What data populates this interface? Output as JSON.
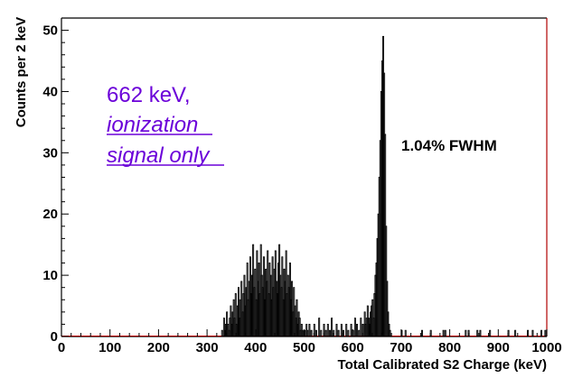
{
  "chart_data": {
    "type": "histogram",
    "title": "",
    "xlabel": "Total Calibrated S2 Charge (keV)",
    "ylabel": "Counts per 2 keV",
    "xlim": [
      0,
      1000
    ],
    "ylim": [
      0,
      52
    ],
    "x_ticks": [
      0,
      100,
      200,
      300,
      400,
      500,
      600,
      700,
      800,
      900,
      1000
    ],
    "y_ticks": [
      0,
      10,
      20,
      30,
      40,
      50
    ],
    "x_tick_labels": [
      "0",
      "100",
      "200",
      "300",
      "400",
      "500",
      "600",
      "700",
      "800",
      "900",
      "1000"
    ],
    "y_tick_labels": [
      "0",
      "10",
      "20",
      "30",
      "40",
      "50"
    ],
    "bin_width": 2,
    "grid": false,
    "legend": "none",
    "annotations": {
      "energy_label": "662 keV,",
      "line2": "ionization",
      "line3": "signal only",
      "resolution": "1.04% FWHM"
    },
    "colors": {
      "histogram": "#000000",
      "frame_right": "#b00000",
      "zero_line": "#b00000",
      "annotation": "#6b00d9"
    },
    "series": [
      {
        "bins": [
          [
            330,
            1
          ],
          [
            334,
            3
          ],
          [
            336,
            1
          ],
          [
            338,
            2
          ],
          [
            340,
            4
          ],
          [
            342,
            2
          ],
          [
            344,
            1
          ],
          [
            346,
            3
          ],
          [
            348,
            5
          ],
          [
            350,
            2
          ],
          [
            352,
            4
          ],
          [
            354,
            6
          ],
          [
            356,
            3
          ],
          [
            358,
            7
          ],
          [
            360,
            2
          ],
          [
            362,
            5
          ],
          [
            364,
            8
          ],
          [
            366,
            3
          ],
          [
            368,
            6
          ],
          [
            370,
            9
          ],
          [
            372,
            4
          ],
          [
            374,
            7
          ],
          [
            376,
            10
          ],
          [
            378,
            5
          ],
          [
            380,
            8
          ],
          [
            382,
            12
          ],
          [
            384,
            6
          ],
          [
            386,
            9
          ],
          [
            388,
            13
          ],
          [
            390,
            7
          ],
          [
            392,
            10
          ],
          [
            394,
            15
          ],
          [
            396,
            8
          ],
          [
            398,
            11
          ],
          [
            400,
            6
          ],
          [
            402,
            14
          ],
          [
            404,
            9
          ],
          [
            406,
            12
          ],
          [
            408,
            7
          ],
          [
            410,
            15
          ],
          [
            412,
            10
          ],
          [
            414,
            8
          ],
          [
            416,
            13
          ],
          [
            418,
            6
          ],
          [
            420,
            11
          ],
          [
            422,
            9
          ],
          [
            424,
            14
          ],
          [
            426,
            7
          ],
          [
            428,
            12
          ],
          [
            430,
            10
          ],
          [
            432,
            6
          ],
          [
            434,
            13
          ],
          [
            436,
            8
          ],
          [
            438,
            11
          ],
          [
            440,
            14
          ],
          [
            442,
            9
          ],
          [
            444,
            7
          ],
          [
            446,
            12
          ],
          [
            448,
            15
          ],
          [
            450,
            10
          ],
          [
            452,
            8
          ],
          [
            454,
            13
          ],
          [
            456,
            6
          ],
          [
            458,
            11
          ],
          [
            460,
            9
          ],
          [
            462,
            14
          ],
          [
            464,
            7
          ],
          [
            466,
            10
          ],
          [
            468,
            8
          ],
          [
            470,
            12
          ],
          [
            472,
            6
          ],
          [
            474,
            9
          ],
          [
            476,
            4
          ],
          [
            478,
            8
          ],
          [
            480,
            5
          ],
          [
            482,
            3
          ],
          [
            484,
            6
          ],
          [
            486,
            2
          ],
          [
            488,
            4
          ],
          [
            490,
            3
          ],
          [
            492,
            1
          ],
          [
            494,
            2
          ],
          [
            496,
            1
          ],
          [
            500,
            1
          ],
          [
            504,
            2
          ],
          [
            506,
            1
          ],
          [
            510,
            2
          ],
          [
            514,
            1
          ],
          [
            520,
            2
          ],
          [
            524,
            1
          ],
          [
            530,
            3
          ],
          [
            534,
            1
          ],
          [
            540,
            2
          ],
          [
            544,
            1
          ],
          [
            548,
            2
          ],
          [
            552,
            1
          ],
          [
            556,
            3
          ],
          [
            560,
            1
          ],
          [
            566,
            2
          ],
          [
            570,
            1
          ],
          [
            576,
            2
          ],
          [
            580,
            1
          ],
          [
            586,
            2
          ],
          [
            590,
            1
          ],
          [
            596,
            2
          ],
          [
            600,
            1
          ],
          [
            604,
            3
          ],
          [
            608,
            2
          ],
          [
            612,
            1
          ],
          [
            616,
            3
          ],
          [
            620,
            2
          ],
          [
            624,
            4
          ],
          [
            626,
            2
          ],
          [
            628,
            3
          ],
          [
            630,
            5
          ],
          [
            632,
            3
          ],
          [
            634,
            2
          ],
          [
            636,
            4
          ],
          [
            638,
            5
          ],
          [
            640,
            6
          ],
          [
            642,
            3
          ],
          [
            644,
            7
          ],
          [
            646,
            10
          ],
          [
            648,
            12
          ],
          [
            650,
            16
          ],
          [
            652,
            20
          ],
          [
            654,
            26
          ],
          [
            656,
            32
          ],
          [
            658,
            40
          ],
          [
            660,
            45
          ],
          [
            662,
            49
          ],
          [
            664,
            43
          ],
          [
            666,
            33
          ],
          [
            668,
            18
          ],
          [
            670,
            9
          ],
          [
            672,
            4
          ],
          [
            674,
            2
          ],
          [
            676,
            1
          ],
          [
            700,
            1
          ],
          [
            708,
            1
          ],
          [
            742,
            1
          ],
          [
            760,
            1
          ],
          [
            786,
            1
          ],
          [
            790,
            1
          ],
          [
            832,
            1
          ],
          [
            838,
            1
          ],
          [
            856,
            1
          ],
          [
            862,
            1
          ],
          [
            882,
            1
          ],
          [
            920,
            1
          ],
          [
            934,
            1
          ],
          [
            960,
            1
          ],
          [
            970,
            1
          ],
          [
            988,
            1
          ],
          [
            996,
            1
          ]
        ]
      }
    ]
  }
}
